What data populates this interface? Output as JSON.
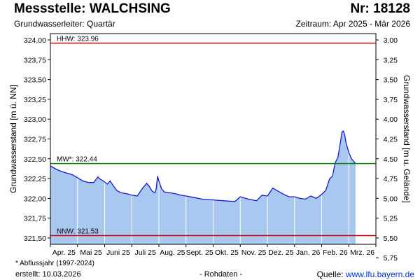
{
  "header": {
    "title": "Messstelle: WALCHSING",
    "number": "Nr: 18128",
    "aquifer": "Grundwasserleiter: Quartär",
    "period": "Zeitraum: Apr 2025 - Mär 2026"
  },
  "footer": {
    "footnote": "* Abflussjahr (1997-2024)",
    "created": "erstellt:  10.03.2026",
    "raw_data": "- Rohdaten -",
    "source_prefix": "Quelle: ",
    "source_link": "www.lfu.bayern.de"
  },
  "colors": {
    "fill": "#a9c8ef",
    "line": "#1a1ad0",
    "hhw": "#e00000",
    "nnw": "#e00000",
    "mw": "#008000",
    "grid": "#ffffff",
    "plot_bg": "#ffffff"
  },
  "chart_data": {
    "type": "area",
    "ylabel": "Grundwasserstand [m ü. NN]",
    "y2label": "Grundwasserstand [m u. Gelände]",
    "ylim": [
      321.42,
      324.08
    ],
    "y_ticks": [
      "324,00",
      "323,75",
      "323,50",
      "323,25",
      "323,00",
      "322,75",
      "322,50",
      "322,25",
      "322,00",
      "321,75",
      "321,50"
    ],
    "y_tick_values": [
      324.0,
      323.75,
      323.5,
      323.25,
      323.0,
      322.75,
      322.5,
      322.25,
      322.0,
      321.75,
      321.5
    ],
    "y2_ticks": [
      "3,00",
      "3,25",
      "3,50",
      "3,75",
      "4,00",
      "4,25",
      "4,50",
      "4,75",
      "5,00",
      "5,25",
      "5,50",
      "5,75"
    ],
    "y2_tick_values": [
      3.0,
      3.25,
      3.5,
      3.75,
      4.0,
      4.25,
      4.5,
      4.75,
      5.0,
      5.25,
      5.5,
      5.75
    ],
    "ground_level": 327.0,
    "x_labels": [
      "Apr. 25",
      "Mai 25",
      "Juni 25",
      "Juli 25",
      "Aug. 25",
      "Sept. 25",
      "Okt. 25",
      "Nov. 25",
      "Dez. 25",
      "Jan. 26",
      "Feb. 26",
      "Mrz. 26"
    ],
    "x_months": 12,
    "reference_lines": [
      {
        "label": "HHW: 323.96",
        "value": 323.96,
        "color": "#e00000"
      },
      {
        "label": "MW*: 322.44",
        "value": 322.44,
        "color": "#008000"
      },
      {
        "label": "NNW: 321.53",
        "value": 321.53,
        "color": "#e00000"
      }
    ],
    "series": [
      {
        "x_month": [
          0,
          0.2,
          0.4,
          0.6,
          0.8,
          1.0,
          1.2,
          1.4,
          1.6,
          1.75,
          1.8,
          1.95,
          2.1,
          2.2,
          2.3,
          2.45,
          2.6,
          2.8,
          3.0,
          3.2,
          3.4,
          3.55,
          3.65,
          3.75,
          3.85,
          3.9,
          3.95,
          4.0,
          4.1,
          4.2,
          4.4,
          4.6,
          4.8,
          5.0,
          5.3,
          5.6,
          6.0,
          6.4,
          6.8,
          7.0,
          7.1,
          7.3,
          7.6,
          7.8,
          8.0,
          8.2,
          8.4,
          8.6,
          8.8,
          9.0,
          9.2,
          9.4,
          9.6,
          9.8,
          10.0,
          10.15,
          10.3,
          10.4,
          10.5,
          10.6,
          10.7,
          10.75,
          10.8,
          10.85,
          10.9,
          11.0,
          11.1,
          11.2,
          11.25
        ],
        "values": [
          322.41,
          322.37,
          322.34,
          322.32,
          322.3,
          322.26,
          322.22,
          322.2,
          322.2,
          322.27,
          322.25,
          322.22,
          322.18,
          322.22,
          322.17,
          322.1,
          322.07,
          322.06,
          322.04,
          322.03,
          322.13,
          322.19,
          322.15,
          322.09,
          322.07,
          322.12,
          322.28,
          322.22,
          322.12,
          322.08,
          322.07,
          322.06,
          322.04,
          322.03,
          322.01,
          321.99,
          321.98,
          321.97,
          321.96,
          322.02,
          322.01,
          321.99,
          321.97,
          322.04,
          322.03,
          322.13,
          322.09,
          322.05,
          322.02,
          322.02,
          322.0,
          321.99,
          322.03,
          322.0,
          322.05,
          322.1,
          322.25,
          322.28,
          322.45,
          322.52,
          322.72,
          322.84,
          322.85,
          322.8,
          322.7,
          322.58,
          322.5,
          322.46,
          322.44
        ]
      }
    ]
  }
}
